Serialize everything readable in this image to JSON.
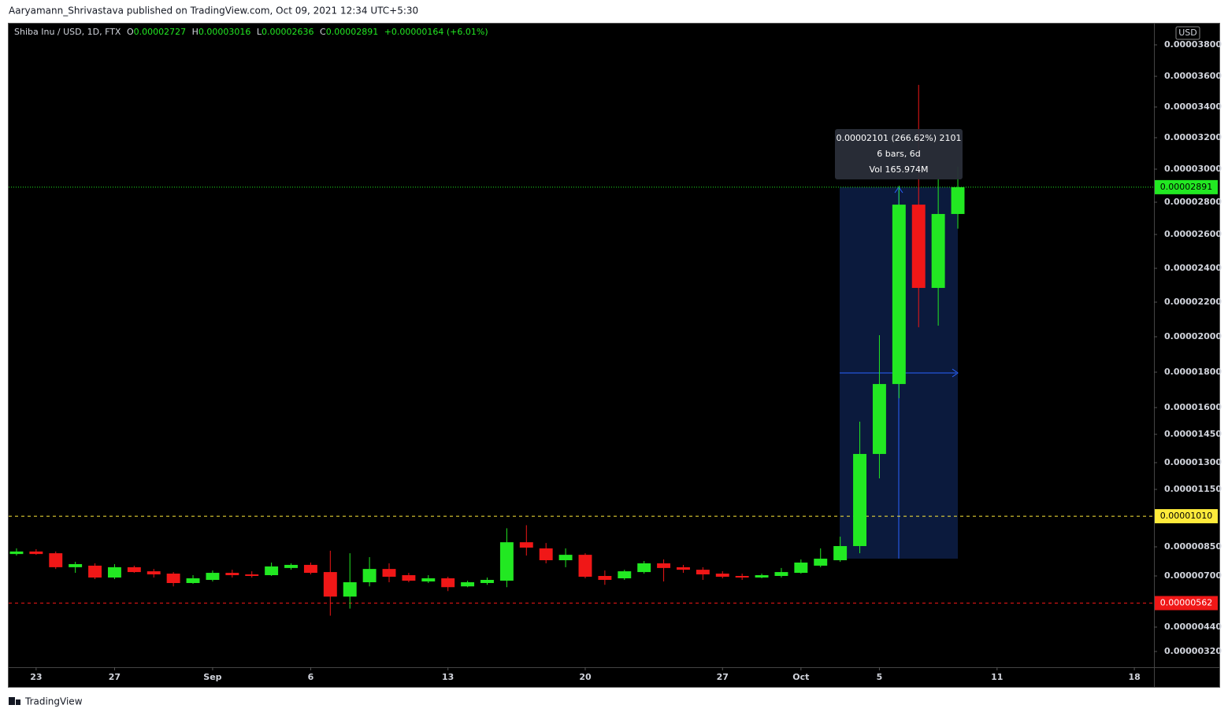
{
  "header": {
    "published": "Aaryamann_Shrivastava published on TradingView.com, Oct 09, 2021 12:34 UTC+5:30",
    "symbol": "Shiba Inu / USD, 1D, FTX",
    "ohlc_labels": [
      "O",
      "H",
      "L",
      "C"
    ],
    "change": "+0.00000164 (+6.01%)"
  },
  "footer": {
    "brand": "TradingView"
  },
  "chart_data": {
    "type": "candlestick",
    "currency": "USD",
    "up_color": "#22e822",
    "down_color": "#f01717",
    "open": [
      8.13e-06,
      8.26e-06,
      8.17e-06,
      7.45e-06,
      7.53e-06,
      6.92e-06,
      7.45e-06,
      7.24e-06,
      7.12e-06,
      6.64e-06,
      6.8e-06,
      7.16e-06,
      7.08e-06,
      7.04e-06,
      7.41e-06,
      7.57e-06,
      7.2e-06,
      5.95e-06,
      6.68e-06,
      7.36e-06,
      7.04e-06,
      6.72e-06,
      6.88e-06,
      6.47e-06,
      6.64e-06,
      6.76e-06,
      8.74e-06,
      8.42e-06,
      7.81e-06,
      8.09e-06,
      7e-06,
      6.88e-06,
      7.2e-06,
      7.65e-06,
      7.45e-06,
      7.32e-06,
      7.12e-06,
      7e-06,
      6.92e-06,
      7e-06,
      7.16e-06,
      7.53e-06,
      7.81e-06,
      8.54e-06,
      1.346e-05,
      1.733e-05,
      2.785e-05,
      2.284e-05,
      2.727e-05
    ],
    "high": [
      8.42e-06,
      8.38e-06,
      8.26e-06,
      7.73e-06,
      7.65e-06,
      7.61e-06,
      7.53e-06,
      7.36e-06,
      7.2e-06,
      7.04e-06,
      7.28e-06,
      7.32e-06,
      7.24e-06,
      7.69e-06,
      7.65e-06,
      7.69e-06,
      8.3e-06,
      8.17e-06,
      7.97e-06,
      7.65e-06,
      7.16e-06,
      7.04e-06,
      6.96e-06,
      6.76e-06,
      6.92e-06,
      9.47e-06,
      9.63e-06,
      8.7e-06,
      8.42e-06,
      8.17e-06,
      7.28e-06,
      7.32e-06,
      7.77e-06,
      7.85e-06,
      7.57e-06,
      7.45e-06,
      7.24e-06,
      7.12e-06,
      7.12e-06,
      7.41e-06,
      7.85e-06,
      8.42e-06,
      9.03e-06,
      1.521e-05,
      2.009e-05,
      2.9e-05,
      3.544e-05,
      2.943e-05,
      3.016e-05
    ],
    "low": [
      8.05e-06,
      8.09e-06,
      7.36e-06,
      7.16e-06,
      6.84e-06,
      6.84e-06,
      7.16e-06,
      6.92e-06,
      6.47e-06,
      6.6e-06,
      6.72e-06,
      6.92e-06,
      6.92e-06,
      7e-06,
      7.32e-06,
      7.08e-06,
      4.98e-06,
      5.34e-06,
      6.47e-06,
      6.68e-06,
      6.68e-06,
      6.64e-06,
      6.23e-06,
      6.43e-06,
      6.55e-06,
      6.43e-06,
      8.05e-06,
      7.65e-06,
      7.45e-06,
      6.88e-06,
      6.55e-06,
      6.8e-06,
      7.12e-06,
      6.72e-06,
      7.16e-06,
      6.8e-06,
      6.88e-06,
      6.8e-06,
      6.88e-06,
      6.92e-06,
      7.12e-06,
      7.45e-06,
      7.73e-06,
      8.17e-06,
      1.212e-05,
      1.653e-05,
      2.055e-05,
      2.064e-05,
      2.636e-05
    ],
    "close": [
      8.26e-06,
      8.13e-06,
      7.45e-06,
      7.61e-06,
      6.92e-06,
      7.45e-06,
      7.2e-06,
      7.08e-06,
      6.64e-06,
      6.88e-06,
      7.16e-06,
      7.04e-06,
      7e-06,
      7.49e-06,
      7.57e-06,
      7.16e-06,
      5.95e-06,
      6.68e-06,
      7.36e-06,
      6.96e-06,
      6.76e-06,
      6.88e-06,
      6.43e-06,
      6.68e-06,
      6.8e-06,
      8.74e-06,
      8.46e-06,
      7.81e-06,
      8.09e-06,
      6.96e-06,
      6.8e-06,
      7.24e-06,
      7.65e-06,
      7.41e-06,
      7.32e-06,
      7.08e-06,
      6.96e-06,
      6.92e-06,
      7.04e-06,
      7.2e-06,
      7.69e-06,
      7.89e-06,
      8.54e-06,
      1.346e-05,
      1.733e-05,
      2.785e-05,
      2.284e-05,
      2.727e-05,
      2.891e-05
    ],
    "xlim": [
      -0.4,
      58
    ],
    "xticks": [
      {
        "value": 1,
        "label": "23"
      },
      {
        "value": 5,
        "label": "27"
      },
      {
        "value": 10,
        "label": "Sep"
      },
      {
        "value": 15,
        "label": "6"
      },
      {
        "value": 22,
        "label": "13"
      },
      {
        "value": 29,
        "label": "20"
      },
      {
        "value": 36,
        "label": "27"
      },
      {
        "value": 40,
        "label": "Oct"
      },
      {
        "value": 44,
        "label": "5"
      },
      {
        "value": 50,
        "label": "11"
      },
      {
        "value": 57,
        "label": "18"
      }
    ],
    "yticks": [
      {
        "value": 3.8e-05,
        "label": "0.00003800"
      },
      {
        "value": 3.6e-05,
        "label": "0.00003600"
      },
      {
        "value": 3.4e-05,
        "label": "0.00003400"
      },
      {
        "value": 3.2e-05,
        "label": "0.00003200"
      },
      {
        "value": 3e-05,
        "label": "0.00003000"
      },
      {
        "value": 2.8e-05,
        "label": "0.00002800"
      },
      {
        "value": 2.6e-05,
        "label": "0.00002600"
      },
      {
        "value": 2.4e-05,
        "label": "0.00002400"
      },
      {
        "value": 2.2e-05,
        "label": "0.00002200"
      },
      {
        "value": 2e-05,
        "label": "0.00002000"
      },
      {
        "value": 1.8e-05,
        "label": "0.00001800"
      },
      {
        "value": 1.6e-05,
        "label": "0.00001600"
      },
      {
        "value": 1.45e-05,
        "label": "0.00001450"
      },
      {
        "value": 1.3e-05,
        "label": "0.00001300"
      },
      {
        "value": 1.15e-05,
        "label": "0.00001150"
      },
      {
        "value": 8.5e-06,
        "label": "0.00000850"
      },
      {
        "value": 7e-06,
        "label": "0.00000700"
      },
      {
        "value": 4.4e-06,
        "label": "0.00000440"
      },
      {
        "value": 3.2e-06,
        "label": "0.00000320"
      }
    ],
    "price_lines": [
      {
        "value": 2.891e-05,
        "label": "0.00002891",
        "color": "#22e822",
        "label_text_color": "#000000",
        "style": "dotted"
      },
      {
        "value": 1.01e-05,
        "label": "0.00001010",
        "color": "#ffeb3b",
        "label_text_color": "#000000",
        "style": "dashed"
      },
      {
        "value": 5.62e-06,
        "label": "0.00000562",
        "color": "#f01717",
        "label_text_color": "#ffffff",
        "style": "dashed"
      }
    ],
    "measure": {
      "lines": [
        "0.00002101 (266.62%) 2101",
        "6 bars, 6d",
        "Vol 165.974M"
      ]
    }
  }
}
